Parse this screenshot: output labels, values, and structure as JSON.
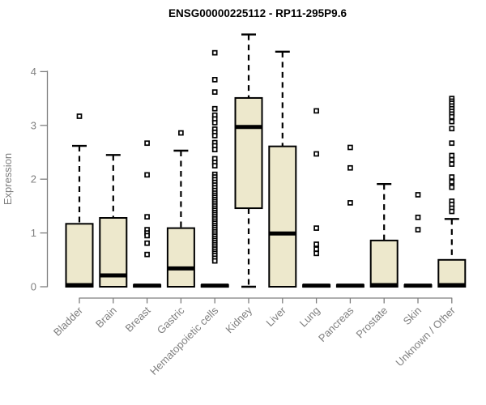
{
  "chart_data": {
    "type": "boxplot",
    "title": "ENSG00000225112 - RP11-295P9.6",
    "xlabel": "",
    "ylabel": "Expression",
    "ylim": [
      0,
      4.7
    ],
    "yticks": [
      0,
      1,
      2,
      3,
      4
    ],
    "grid": false,
    "legend": "none",
    "colors": {
      "box_fill": "#EDE8CC",
      "box_border": "#000000",
      "median": "#000000",
      "whisker": "#000000",
      "axis": "#7f7f7f",
      "tick_text": "#7f7f7f",
      "title_text": "#000000",
      "background": "#ffffff"
    },
    "categories": [
      "Bladder",
      "Brain",
      "Breast",
      "Gastric",
      "Hematopoietic cells",
      "Kidney",
      "Liver",
      "Lung",
      "Pancreas",
      "Prostate",
      "Skin",
      "Unknown / Other"
    ],
    "boxes": [
      {
        "label": "Bladder",
        "q1": 0,
        "median": 0.03,
        "q3": 1.17,
        "whisker_low": 0,
        "whisker_high": 2.62,
        "outliers": [
          3.17
        ]
      },
      {
        "label": "Brain",
        "q1": 0,
        "median": 0.21,
        "q3": 1.28,
        "whisker_low": 0,
        "whisker_high": 2.45,
        "outliers": []
      },
      {
        "label": "Breast",
        "q1": 0,
        "median": 0.02,
        "q3": 0.03,
        "whisker_low": 0,
        "whisker_high": 0.03,
        "outliers": [
          2.67,
          2.08,
          1.3,
          1.06,
          1.0,
          0.95,
          0.81,
          0.6
        ]
      },
      {
        "label": "Gastric",
        "q1": 0,
        "median": 0.34,
        "q3": 1.09,
        "whisker_low": 0,
        "whisker_high": 2.53,
        "outliers": [
          2.86
        ]
      },
      {
        "label": "Hematopoietic cells",
        "q1": 0,
        "median": 0.02,
        "q3": 0.03,
        "whisker_low": 0,
        "whisker_high": 0.03,
        "outliers": [
          4.35,
          3.85,
          3.62,
          3.31,
          3.19,
          3.12,
          3.05,
          2.93,
          2.87,
          2.81,
          2.68,
          2.62,
          2.55,
          2.38,
          2.31,
          2.25,
          2.09,
          2.04,
          1.99,
          1.94,
          1.89,
          1.84,
          1.79,
          1.74,
          1.7,
          1.66,
          1.62,
          1.58,
          1.54,
          1.5,
          1.46,
          1.42,
          1.38,
          1.34,
          1.3,
          1.26,
          1.22,
          1.18,
          1.14,
          1.1,
          1.06,
          1.02,
          0.98,
          0.94,
          0.9,
          0.86,
          0.82,
          0.78,
          0.74,
          0.7,
          0.66,
          0.62,
          0.58,
          0.53,
          0.48
        ]
      },
      {
        "label": "Kidney",
        "q1": 1.46,
        "median": 2.97,
        "q3": 3.51,
        "whisker_low": 0,
        "whisker_high": 4.69,
        "outliers": []
      },
      {
        "label": "Liver",
        "q1": 0,
        "median": 0.99,
        "q3": 2.61,
        "whisker_low": 0,
        "whisker_high": 4.37,
        "outliers": []
      },
      {
        "label": "Lung",
        "q1": 0,
        "median": 0.02,
        "q3": 0.03,
        "whisker_low": 0,
        "whisker_high": 0.03,
        "outliers": [
          3.27,
          2.47,
          1.09,
          0.79,
          0.7,
          0.62
        ]
      },
      {
        "label": "Pancreas",
        "q1": 0,
        "median": 0.02,
        "q3": 0.03,
        "whisker_low": 0,
        "whisker_high": 0.03,
        "outliers": [
          2.59,
          2.21,
          1.56
        ]
      },
      {
        "label": "Prostate",
        "q1": 0,
        "median": 0.03,
        "q3": 0.86,
        "whisker_low": 0,
        "whisker_high": 1.91,
        "outliers": []
      },
      {
        "label": "Skin",
        "q1": 0,
        "median": 0.02,
        "q3": 0.03,
        "whisker_low": 0,
        "whisker_high": 0.03,
        "outliers": [
          1.71,
          1.29,
          1.06
        ]
      },
      {
        "label": "Unknown / Other",
        "q1": 0,
        "median": 0.03,
        "q3": 0.5,
        "whisker_low": 0,
        "whisker_high": 1.26,
        "outliers": [
          3.5,
          3.45,
          3.41,
          3.36,
          3.31,
          3.26,
          3.21,
          3.16,
          3.07,
          2.94,
          2.67,
          2.44,
          2.36,
          2.28,
          2.04,
          1.95,
          1.85,
          1.59,
          1.53,
          1.46,
          1.4
        ]
      }
    ]
  }
}
